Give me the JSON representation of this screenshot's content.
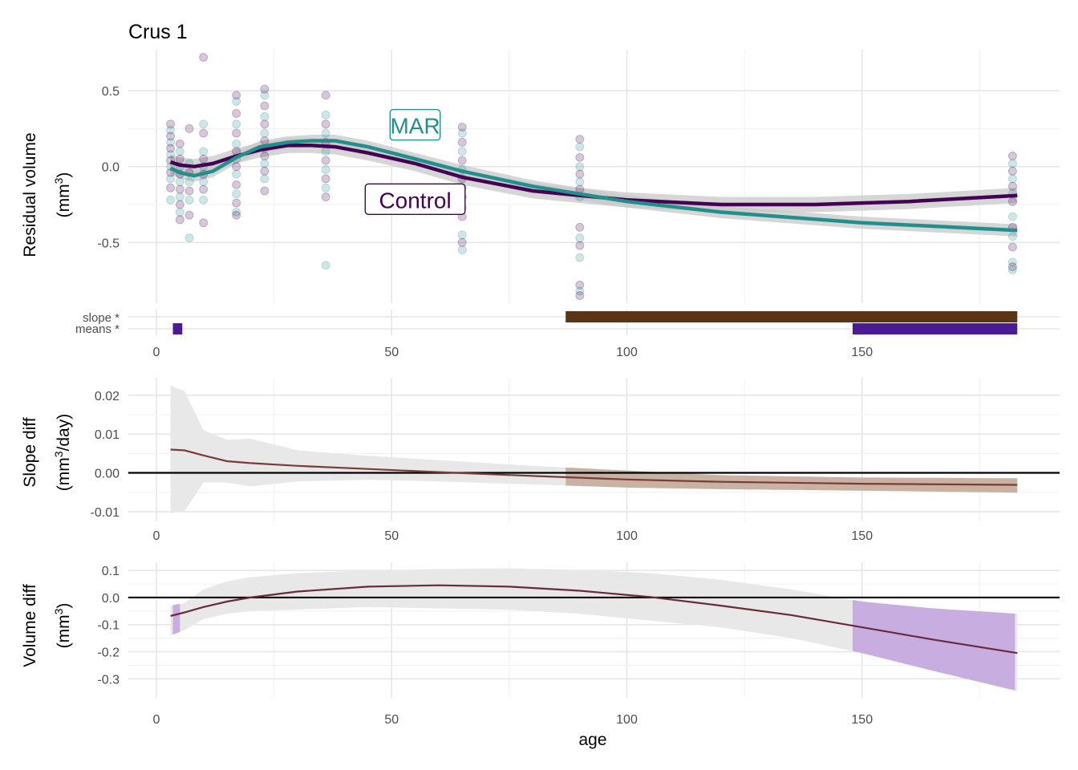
{
  "chart_data": [
    {
      "type": "scatter",
      "title": "Crus 1",
      "ylabel_line1": "Residual volume",
      "ylabel_line2": "(mm",
      "ylabel_sup": "3",
      "ylabel_close": ")",
      "xlim": [
        -6,
        192
      ],
      "ylim": [
        -0.9,
        0.77
      ],
      "yticks": [
        0.5,
        0.0,
        -0.5
      ],
      "ytick_labels": [
        "0.5",
        "0.0",
        "-0.5"
      ],
      "xticks": [
        0,
        50,
        100,
        150
      ],
      "xtick_labels": [
        "0",
        "50",
        "100",
        "150"
      ],
      "grid": true,
      "colors": {
        "control": "#440154",
        "mar": "#21908C",
        "band": "#c8c8c8",
        "slope_bar": "#5a3415",
        "means_bar": "#4b1a96"
      },
      "series": [
        {
          "name": "MAR",
          "color": "#21908C",
          "fit_x": [
            3,
            5,
            8,
            12,
            17,
            22,
            28,
            33,
            38,
            45,
            55,
            65,
            80,
            100,
            120,
            150,
            183
          ],
          "fit_y": [
            -0.01,
            -0.04,
            -0.06,
            -0.03,
            0.06,
            0.13,
            0.16,
            0.17,
            0.17,
            0.13,
            0.05,
            -0.03,
            -0.13,
            -0.23,
            -0.3,
            -0.37,
            -0.42
          ],
          "band_half": 0.04
        },
        {
          "name": "Control",
          "color": "#440154",
          "fit_x": [
            3,
            5,
            8,
            12,
            17,
            22,
            28,
            33,
            38,
            45,
            55,
            65,
            80,
            100,
            120,
            140,
            160,
            183
          ],
          "fit_y": [
            0.03,
            0.01,
            0.0,
            0.02,
            0.07,
            0.11,
            0.14,
            0.14,
            0.13,
            0.09,
            0.02,
            -0.07,
            -0.16,
            -0.22,
            -0.25,
            -0.25,
            -0.23,
            -0.19
          ],
          "band_half": 0.05
        }
      ],
      "points": [
        {
          "age": 3,
          "values": [
            0.28,
            0.24,
            0.2,
            0.16,
            0.12,
            0.08,
            0.04,
            0.0,
            -0.04,
            -0.08,
            -0.14,
            -0.22
          ]
        },
        {
          "age": 5,
          "values": [
            0.15,
            0.1,
            0.05,
            0.0,
            -0.05,
            -0.1,
            -0.15,
            -0.2,
            -0.25,
            -0.3,
            -0.35
          ]
        },
        {
          "age": 7,
          "values": [
            0.25,
            0.02,
            -0.04,
            -0.1,
            -0.16,
            -0.22,
            -0.32,
            -0.47
          ]
        },
        {
          "age": 10,
          "values": [
            0.72,
            0.28,
            0.22,
            0.1,
            0.05,
            0.0,
            -0.05,
            -0.1,
            -0.15,
            -0.22,
            -0.37
          ]
        },
        {
          "age": 17,
          "values": [
            0.47,
            0.43,
            0.35,
            0.28,
            0.22,
            0.15,
            0.1,
            0.05,
            0.0,
            -0.05,
            -0.12,
            -0.18,
            -0.24,
            -0.3,
            -0.32
          ]
        },
        {
          "age": 23,
          "values": [
            0.51,
            0.47,
            0.4,
            0.33,
            0.28,
            0.22,
            0.17,
            0.12,
            0.07,
            0.02,
            -0.03,
            -0.08,
            -0.16
          ]
        },
        {
          "age": 36,
          "values": [
            0.47,
            0.34,
            0.28,
            0.22,
            0.16,
            0.1,
            0.04,
            -0.02,
            -0.08,
            -0.14,
            -0.2,
            -0.65
          ]
        },
        {
          "age": 65,
          "values": [
            0.26,
            0.22,
            0.16,
            0.1,
            0.04,
            -0.02,
            -0.08,
            -0.14,
            -0.2,
            -0.27,
            -0.33,
            -0.45,
            -0.5,
            -0.55
          ]
        },
        {
          "age": 90,
          "values": [
            0.18,
            0.13,
            0.06,
            0.0,
            -0.05,
            -0.1,
            -0.15,
            -0.2,
            -0.4,
            -0.47,
            -0.52,
            -0.6,
            -0.78,
            -0.82,
            -0.85
          ]
        },
        {
          "age": 182,
          "values": [
            0.07,
            0.02,
            -0.03,
            -0.08,
            -0.13,
            -0.18,
            -0.23,
            -0.33,
            -0.4,
            -0.46,
            -0.53,
            -0.63,
            -0.66,
            -0.68
          ]
        }
      ],
      "labels": [
        {
          "text": "MAR",
          "x": 55,
          "y": 0.27,
          "color": "#21908C"
        },
        {
          "text": "Control",
          "x": 55,
          "y": -0.22,
          "color": "#440154"
        }
      ],
      "significance": {
        "slope_label": "slope *",
        "means_label": "means *",
        "slope_ranges": [
          [
            87,
            183
          ]
        ],
        "means_ranges": [
          [
            3.5,
            5.5
          ],
          [
            148,
            183
          ]
        ]
      }
    },
    {
      "type": "line",
      "ylabel_line1": "Slope diff",
      "ylabel_line2": "(mm",
      "ylabel_sup": "3",
      "ylabel_close": "/day)",
      "xlim": [
        -6,
        192
      ],
      "ylim": [
        -0.0125,
        0.0245
      ],
      "yticks": [
        0.02,
        0.01,
        0.0,
        -0.01
      ],
      "ytick_labels": [
        "0.02",
        "0.01",
        "0.00",
        "-0.01"
      ],
      "xticks": [
        0,
        50,
        100,
        150
      ],
      "xtick_labels": [
        "0",
        "50",
        "100",
        "150"
      ],
      "x": [
        3,
        6,
        10,
        15,
        20,
        30,
        45,
        60,
        80,
        100,
        120,
        150,
        183
      ],
      "y": [
        0.006,
        0.0058,
        0.0045,
        0.003,
        0.0025,
        0.0018,
        0.001,
        0.0002,
        -0.0008,
        -0.0017,
        -0.0023,
        -0.0028,
        -0.0031
      ],
      "band_upper": [
        0.0225,
        0.021,
        0.011,
        0.0085,
        0.0088,
        0.0058,
        0.0044,
        0.0033,
        0.0018,
        0.0006,
        -0.0006,
        -0.0012,
        -0.0014
      ],
      "band_lower": [
        -0.0105,
        -0.0098,
        -0.0025,
        -0.0025,
        -0.0035,
        -0.0022,
        -0.0018,
        -0.0022,
        -0.003,
        -0.0038,
        -0.0042,
        -0.0046,
        -0.0051
      ],
      "highlight_ranges": [
        [
          87,
          183
        ]
      ],
      "colors": {
        "line": "#7a3b3b",
        "band": "#e8e8e8",
        "highlight": "#c4a896",
        "zero": "#000000"
      }
    },
    {
      "type": "line",
      "xlabel": "age",
      "ylabel_line1": "Volume diff",
      "ylabel_line2": "(mm",
      "ylabel_sup": "3",
      "ylabel_close": ")",
      "xlim": [
        -6,
        192
      ],
      "ylim": [
        -0.37,
        0.13
      ],
      "yticks": [
        0.1,
        0.0,
        -0.1,
        -0.2,
        -0.3
      ],
      "ytick_labels": [
        "0.1",
        "0.0",
        "-0.1",
        "-0.2",
        "-0.3"
      ],
      "xticks": [
        0,
        50,
        100,
        150
      ],
      "xtick_labels": [
        "0",
        "50",
        "100",
        "150"
      ],
      "x": [
        3,
        6,
        10,
        15,
        20,
        30,
        45,
        60,
        75,
        90,
        105,
        120,
        135,
        150,
        165,
        183
      ],
      "y": [
        -0.068,
        -0.055,
        -0.035,
        -0.015,
        0.0,
        0.022,
        0.04,
        0.045,
        0.04,
        0.025,
        0.002,
        -0.03,
        -0.065,
        -0.11,
        -0.155,
        -0.205
      ],
      "band_upper": [
        -0.03,
        -0.02,
        0.03,
        0.06,
        0.075,
        0.09,
        0.1,
        0.105,
        0.107,
        0.102,
        0.09,
        0.065,
        0.03,
        -0.015,
        -0.04,
        -0.06
      ],
      "band_lower": [
        -0.14,
        -0.12,
        -0.08,
        -0.06,
        -0.05,
        -0.045,
        -0.035,
        -0.04,
        -0.045,
        -0.06,
        -0.085,
        -0.11,
        -0.15,
        -0.205,
        -0.27,
        -0.345
      ],
      "highlight_ranges": [
        [
          3.5,
          6
        ],
        [
          148,
          183
        ]
      ],
      "colors": {
        "line": "#6b2a3a",
        "band": "#e8e8e8",
        "highlight": "#c7ade0",
        "zero": "#000000"
      }
    }
  ]
}
